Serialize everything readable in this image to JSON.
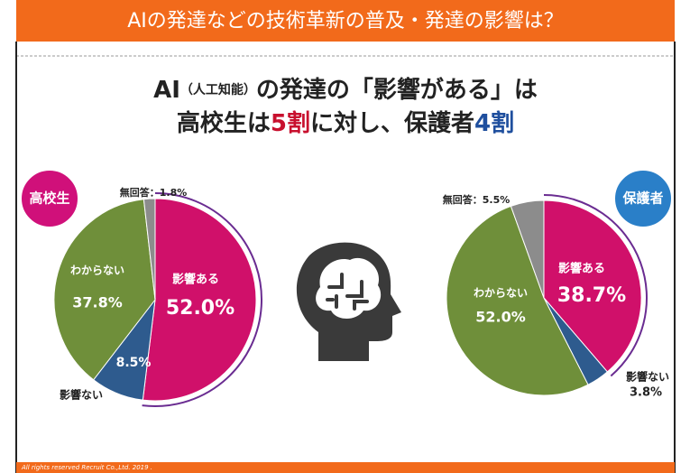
{
  "header": {
    "title": "AIの発達などの技術革新の普及・発達の影響は？"
  },
  "headline": {
    "line1": [
      "AI",
      "（人工知能）",
      "の発達の「影響がある」は"
    ],
    "line2": [
      "高校生は",
      "5割",
      "に対し、保護者",
      "4割"
    ]
  },
  "footer": "All rights reserved Recruit Co.,Ltd. 2019 .",
  "chart_data": [
    {
      "type": "pie",
      "title": "高校生",
      "categories": [
        "影響ある",
        "影響ない",
        "わからない",
        "無回答"
      ],
      "values": [
        52.0,
        8.5,
        37.8,
        1.8
      ],
      "value_labels": [
        "52.0%",
        "8.5%",
        "37.8%",
        "1.8%"
      ],
      "colors": [
        "#d0106a",
        "#2e5b8e",
        "#6f8f3a",
        "#8c8c8c"
      ],
      "badge_color": "#d0107a"
    },
    {
      "type": "pie",
      "title": "保護者",
      "categories": [
        "影響ある",
        "影響ない",
        "わからない",
        "無回答"
      ],
      "values": [
        38.7,
        3.8,
        52.0,
        5.5
      ],
      "value_labels": [
        "38.7%",
        "3.8%",
        "52.0%",
        "5.5%"
      ],
      "colors": [
        "#d0106a",
        "#2e5b8e",
        "#6f8f3a",
        "#8c8c8c"
      ],
      "badge_color": "#2a7fc8"
    }
  ]
}
